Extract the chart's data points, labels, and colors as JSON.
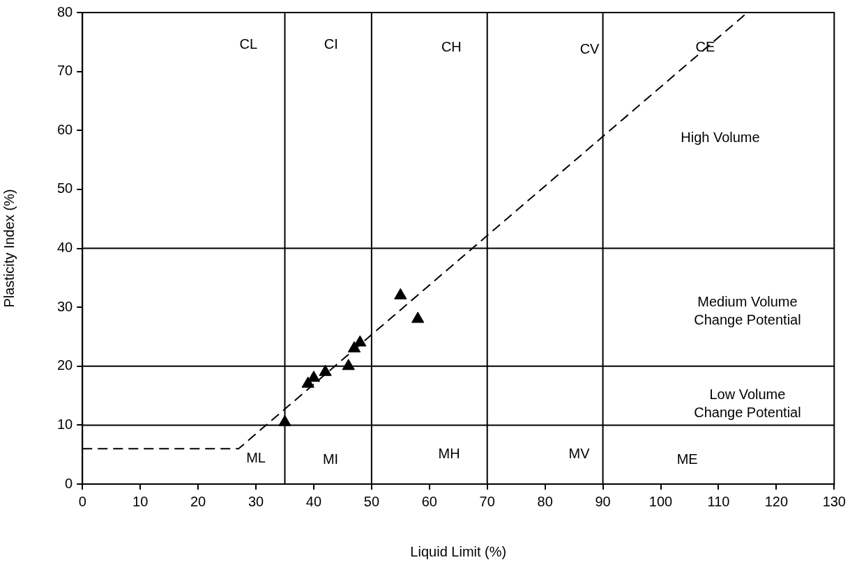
{
  "chart_data": {
    "type": "scatter",
    "xlabel": "Liquid Limit (%)",
    "ylabel": "Plasticity Index (%)",
    "xlim": [
      0,
      130
    ],
    "xticks": [
      0,
      10,
      20,
      30,
      40,
      50,
      60,
      70,
      80,
      90,
      100,
      110,
      120,
      130
    ],
    "ylim": [
      0,
      80
    ],
    "yticks": [
      0,
      10,
      20,
      30,
      40,
      50,
      60,
      70,
      80
    ],
    "grid": false,
    "legend": false,
    "series": [
      {
        "type": "line",
        "color": "#000000",
        "x": [
          0,
          27,
          115
        ],
        "values": [
          6,
          6,
          80
        ],
        "line_style": "dashed",
        "marker": "none"
      },
      {
        "type": "scatter",
        "color": "#000000",
        "marker": "triangle",
        "x": [
          35,
          39,
          40,
          42,
          46,
          47,
          48,
          55,
          58
        ],
        "values": [
          10.5,
          17,
          18,
          19,
          20,
          23,
          24,
          32,
          28
        ]
      }
    ],
    "ref_lines": [
      {
        "axis": "x",
        "value": 35,
        "color": "#000000"
      },
      {
        "axis": "x",
        "value": 50,
        "color": "#000000"
      },
      {
        "axis": "x",
        "value": 70,
        "color": "#000000"
      },
      {
        "axis": "x",
        "value": 90,
        "color": "#000000"
      },
      {
        "axis": "y",
        "value": 10,
        "color": "#000000"
      },
      {
        "axis": "y",
        "value": 20,
        "color": "#000000"
      },
      {
        "axis": "y",
        "value": 40,
        "color": "#000000"
      }
    ],
    "annotations": [
      "CL",
      "CI",
      "CH",
      "CV",
      "CE",
      "ML",
      "MI",
      "MH",
      "MV",
      "ME",
      "High Volume",
      "Medium Volume\nChange Potential",
      "Low Volume\nChange Potential"
    ]
  }
}
